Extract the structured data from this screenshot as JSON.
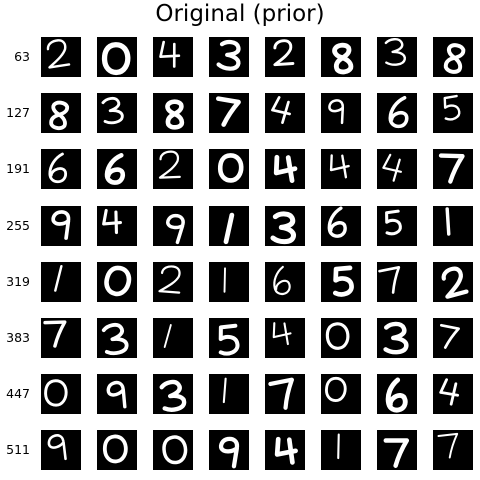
{
  "figure": {
    "title": "Original (prior)",
    "row_labels": [
      "63",
      "127",
      "191",
      "255",
      "319",
      "383",
      "447",
      "511"
    ],
    "background_color": "#ffffff",
    "tile_color": "#000000",
    "digit_color": "#ffffff",
    "grid": {
      "rows": [
        [
          "2",
          "0",
          "4",
          "3",
          "2",
          "8",
          "3",
          "8"
        ],
        [
          "8",
          "3",
          "8",
          "7",
          "4",
          "9",
          "6",
          "5"
        ],
        [
          "6",
          "6",
          "2",
          "0",
          "4",
          "4",
          "4",
          "7"
        ],
        [
          "9",
          "4",
          "9",
          "1",
          "3",
          "6",
          "5",
          "1"
        ],
        [
          "1",
          "0",
          "2",
          "1",
          "6",
          "5",
          "7",
          "2"
        ],
        [
          "7",
          "3",
          "1",
          "5",
          "4",
          "0",
          "3",
          "7"
        ],
        [
          "0",
          "9",
          "3",
          "1",
          "7",
          "0",
          "6",
          "4"
        ],
        [
          "9",
          "0",
          "0",
          "9",
          "4",
          "1",
          "7",
          "7"
        ]
      ]
    }
  }
}
